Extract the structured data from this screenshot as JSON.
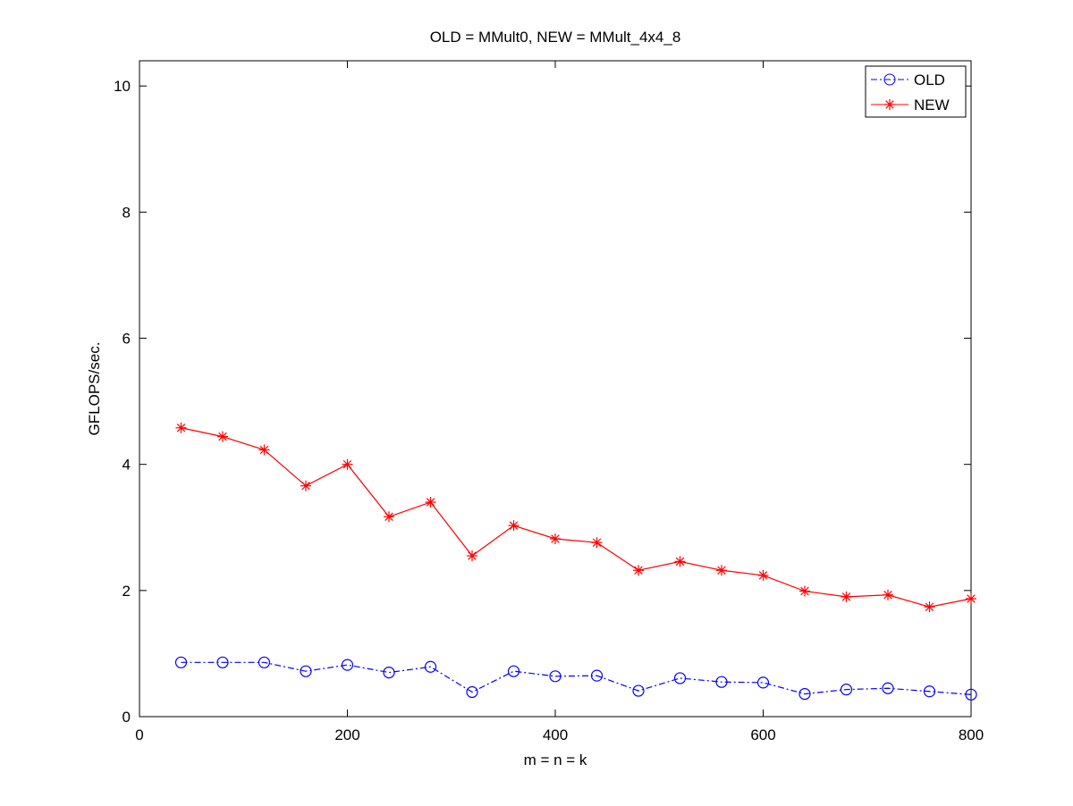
{
  "chart_data": {
    "type": "line",
    "title": "OLD = MMult0, NEW = MMult_4x4_8",
    "xlabel": "m = n = k",
    "ylabel": "GFLOPS/sec.",
    "xlim": [
      0,
      800
    ],
    "ylim": [
      0,
      10.4
    ],
    "xticks": [
      0,
      200,
      400,
      600,
      800
    ],
    "yticks": [
      0,
      2,
      4,
      6,
      8,
      10
    ],
    "x_tick_labels": [
      "0",
      "200",
      "400",
      "600",
      "800"
    ],
    "y_tick_labels": [
      "0",
      "2",
      "4",
      "6",
      "8",
      "10"
    ],
    "grid": false,
    "legend_position": "top-right",
    "x": [
      40,
      80,
      120,
      160,
      200,
      240,
      280,
      320,
      360,
      400,
      440,
      480,
      520,
      560,
      600,
      640,
      680,
      720,
      760,
      800
    ],
    "series": [
      {
        "name": "OLD",
        "color": "#0000ff",
        "line_style": "dash-dot",
        "marker": "circle",
        "values": [
          0.86,
          0.86,
          0.86,
          0.72,
          0.82,
          0.7,
          0.79,
          0.39,
          0.72,
          0.64,
          0.65,
          0.41,
          0.61,
          0.55,
          0.54,
          0.36,
          0.43,
          0.45,
          0.4,
          0.35
        ]
      },
      {
        "name": "NEW",
        "color": "#ff0000",
        "line_style": "solid",
        "marker": "asterisk",
        "values": [
          4.58,
          4.44,
          4.23,
          3.66,
          4.0,
          3.17,
          3.4,
          2.55,
          3.03,
          2.82,
          2.76,
          2.32,
          2.46,
          2.32,
          2.24,
          1.99,
          1.9,
          1.93,
          1.74,
          1.87
        ]
      }
    ]
  }
}
